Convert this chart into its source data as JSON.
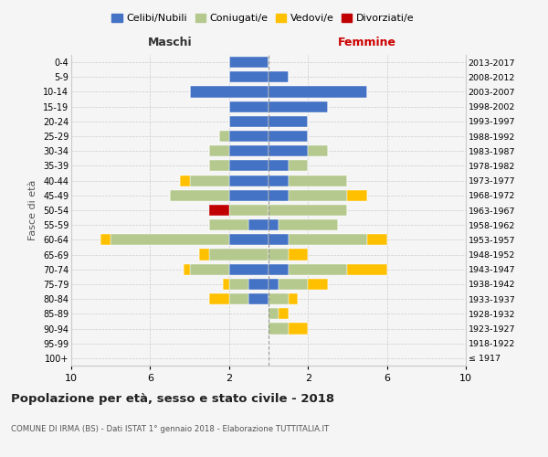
{
  "age_groups": [
    "100+",
    "95-99",
    "90-94",
    "85-89",
    "80-84",
    "75-79",
    "70-74",
    "65-69",
    "60-64",
    "55-59",
    "50-54",
    "45-49",
    "40-44",
    "35-39",
    "30-34",
    "25-29",
    "20-24",
    "15-19",
    "10-14",
    "5-9",
    "0-4"
  ],
  "birth_years": [
    "≤ 1917",
    "1918-1922",
    "1923-1927",
    "1928-1932",
    "1933-1937",
    "1938-1942",
    "1943-1947",
    "1948-1952",
    "1953-1957",
    "1958-1962",
    "1963-1967",
    "1968-1972",
    "1973-1977",
    "1978-1982",
    "1983-1987",
    "1988-1992",
    "1993-1997",
    "1998-2002",
    "2003-2007",
    "2008-2012",
    "2013-2017"
  ],
  "colors": {
    "celibi": "#4472c4",
    "coniugati": "#b5c98e",
    "vedovi": "#ffc000",
    "divorziati": "#c00000"
  },
  "maschi": {
    "celibi": [
      0,
      0,
      0,
      0,
      1,
      1,
      2,
      0,
      2,
      1,
      0,
      2,
      2,
      2,
      2,
      2,
      2,
      2,
      4,
      2,
      2
    ],
    "coniugati": [
      0,
      0,
      0,
      0,
      1,
      1,
      2,
      3,
      6,
      2,
      2,
      3,
      2,
      1,
      1,
      0.5,
      0,
      0,
      0,
      0,
      0
    ],
    "vedovi": [
      0,
      0,
      0,
      0,
      1,
      0.3,
      0.3,
      0.5,
      0.5,
      0,
      0,
      0,
      0.5,
      0,
      0,
      0,
      0,
      0,
      0,
      0,
      0
    ],
    "divorziati": [
      0,
      0,
      0,
      0,
      0,
      0,
      0,
      0,
      0,
      0,
      1,
      0,
      0,
      0,
      0,
      0,
      0,
      0,
      0,
      0,
      0
    ]
  },
  "femmine": {
    "celibi": [
      0,
      0,
      0,
      0,
      0,
      0.5,
      1,
      0,
      1,
      0.5,
      0,
      1,
      1,
      1,
      2,
      2,
      2,
      3,
      5,
      1,
      0
    ],
    "coniugati": [
      0,
      0,
      1,
      0.5,
      1,
      1.5,
      3,
      1,
      4,
      3,
      4,
      3,
      3,
      1,
      1,
      0,
      0,
      0,
      0,
      0,
      0
    ],
    "vedovi": [
      0,
      0,
      1,
      0.5,
      0.5,
      1,
      2,
      1,
      1,
      0,
      0,
      1,
      0,
      0,
      0,
      0,
      0,
      0,
      0,
      0,
      0
    ],
    "divorziati": [
      0,
      0,
      0,
      0,
      0,
      0,
      0,
      0,
      0,
      0,
      0,
      0,
      0,
      0,
      0,
      0,
      0,
      0,
      0,
      0,
      0
    ]
  },
  "xlim": 10,
  "xticks": [
    -10,
    -6,
    -2,
    2,
    6,
    10
  ],
  "xticklabels": [
    "10",
    "6",
    "2",
    "2",
    "6",
    "10"
  ],
  "xlabel_left": "Maschi",
  "xlabel_right": "Femmine",
  "ylabel_left": "Fasce di età",
  "title": "Popolazione per età, sesso e stato civile - 2018",
  "subtitle": "COMUNE DI IRMA (BS) - Dati ISTAT 1° gennaio 2018 - Elaborazione TUTTITALIA.IT",
  "legend_labels": [
    "Celibi/Nubili",
    "Coniugati/e",
    "Vedovi/e",
    "Divorziati/e"
  ],
  "bg_color": "#f5f5f5",
  "grid_color": "#cccccc",
  "bar_height": 0.75
}
